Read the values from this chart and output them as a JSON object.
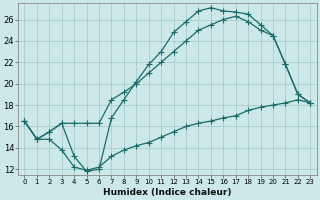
{
  "xlabel": "Humidex (Indice chaleur)",
  "ylabel": "",
  "bg_color": "#cce8e8",
  "grid_color": "#aacccc",
  "line_color": "#1a6b6b",
  "xlim": [
    -0.5,
    23.5
  ],
  "ylim": [
    11.5,
    27.5
  ],
  "xticks": [
    0,
    1,
    2,
    3,
    4,
    5,
    6,
    7,
    8,
    9,
    10,
    11,
    12,
    13,
    14,
    15,
    16,
    17,
    18,
    19,
    20,
    21,
    22,
    23
  ],
  "yticks": [
    12,
    14,
    16,
    18,
    20,
    22,
    24,
    26
  ],
  "line1_x": [
    0,
    1,
    2,
    3,
    4,
    5,
    6,
    7,
    8,
    9,
    10,
    11,
    12,
    13,
    14,
    15,
    16,
    17,
    18,
    19,
    20,
    21,
    22,
    23
  ],
  "line1_y": [
    16.5,
    14.8,
    15.5,
    16.3,
    13.2,
    11.8,
    12.0,
    16.8,
    18.5,
    20.2,
    21.8,
    23.0,
    24.8,
    25.8,
    26.8,
    27.1,
    26.8,
    26.7,
    26.5,
    25.5,
    24.5,
    21.8,
    19.0,
    18.2
  ],
  "line2_x": [
    0,
    1,
    2,
    3,
    4,
    5,
    6,
    7,
    8,
    9,
    10,
    11,
    12,
    13,
    14,
    15,
    16,
    17,
    18,
    19,
    20,
    21,
    22,
    23
  ],
  "line2_y": [
    16.5,
    14.8,
    15.5,
    16.3,
    16.3,
    16.3,
    16.3,
    18.5,
    19.2,
    20.0,
    21.0,
    22.0,
    23.0,
    24.0,
    25.0,
    25.5,
    26.0,
    26.3,
    25.8,
    25.0,
    24.5,
    21.8,
    19.0,
    18.2
  ],
  "line3_x": [
    0,
    1,
    2,
    3,
    4,
    5,
    6,
    7,
    8,
    9,
    10,
    11,
    12,
    13,
    14,
    15,
    16,
    17,
    18,
    19,
    20,
    21,
    22,
    23
  ],
  "line3_y": [
    16.5,
    14.8,
    14.8,
    13.8,
    12.2,
    11.9,
    12.2,
    13.2,
    13.8,
    14.2,
    14.5,
    15.0,
    15.5,
    16.0,
    16.3,
    16.5,
    16.8,
    17.0,
    17.5,
    17.8,
    18.0,
    18.2,
    18.5,
    18.2
  ]
}
